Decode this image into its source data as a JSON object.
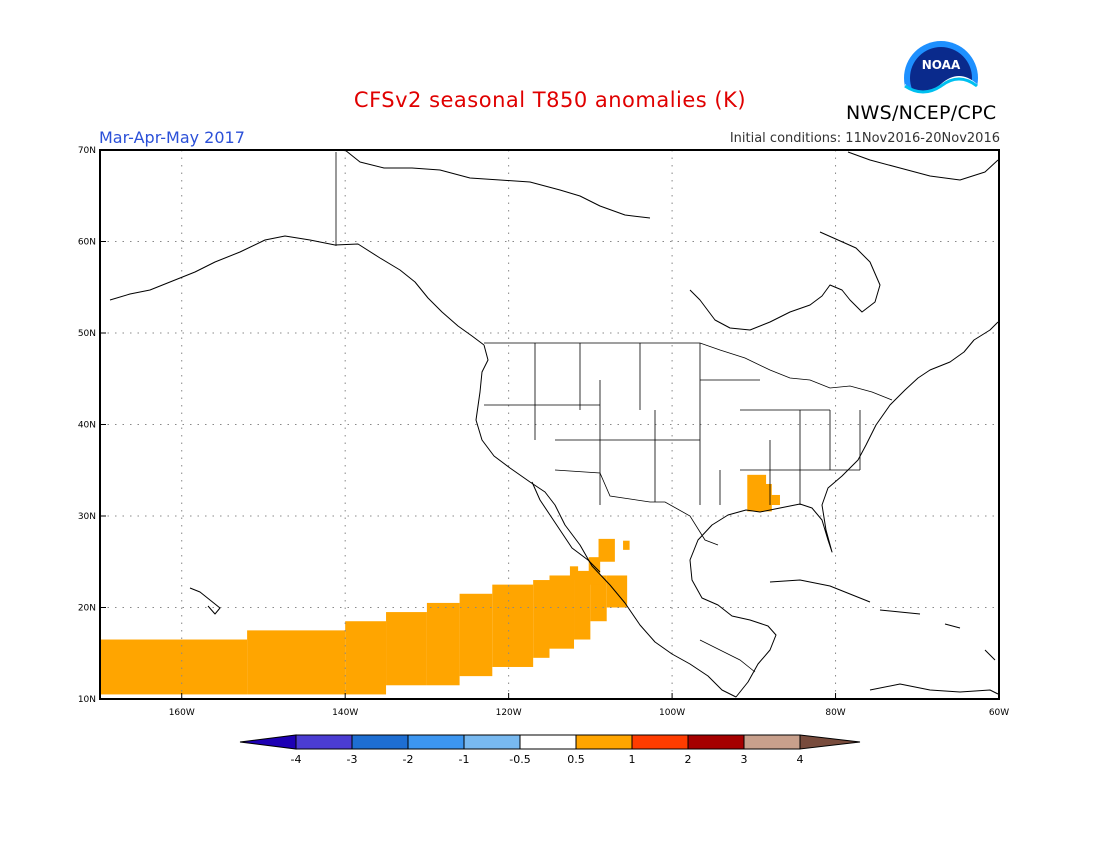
{
  "header": {
    "title": "CFSv2 seasonal T850 anomalies (K)",
    "season": "Mar-Apr-May 2017",
    "initial_conditions": "Initial conditions: 11Nov2016-20Nov2016",
    "agency": "NWS/NCEP/CPC",
    "logo_text": "NOAA"
  },
  "map": {
    "lon_range": [
      -170,
      -60
    ],
    "lat_range": [
      10,
      70
    ],
    "lat_ticks": [
      "10N",
      "20N",
      "30N",
      "40N",
      "50N",
      "60N",
      "70N"
    ],
    "lon_ticks": [
      "160W",
      "140W",
      "120W",
      "100W",
      "80W",
      "60W"
    ],
    "grid": "dotted",
    "anomaly_color": "#ffa500"
  },
  "colorbar": {
    "colors": [
      "#1e00b4",
      "#4b3cd2",
      "#1e6ed2",
      "#3c96f0",
      "#78b9f0",
      "#ffffff",
      "#ffa500",
      "#ff3c00",
      "#a50000",
      "#c8a08c",
      "#784b3c"
    ],
    "labels": [
      "-4",
      "-3",
      "-2",
      "-1",
      "-0.5",
      "0.5",
      "1",
      "2",
      "3",
      "4"
    ]
  }
}
